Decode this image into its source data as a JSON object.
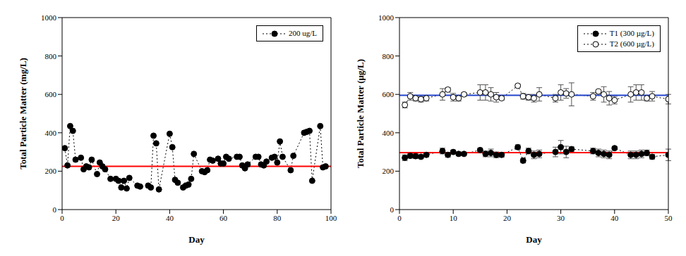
{
  "chart_data": [
    {
      "type": "line",
      "x_label": "Day",
      "y_label": "Total Particle Matter (mg/L)",
      "xlim": [
        0,
        100
      ],
      "xticks": [
        0,
        20,
        40,
        60,
        80,
        100
      ],
      "ylim": [
        0,
        1000
      ],
      "yticks": [
        0,
        200,
        400,
        600,
        800,
        1000
      ],
      "legend": "upper right",
      "reference_lines": [
        {
          "value": 225,
          "color": "#ff0000"
        }
      ],
      "series": [
        {
          "name": "200 ug/L",
          "color": "#000000",
          "marker": "filled_circle",
          "line_style": "dotted",
          "x": [
            1,
            2,
            3,
            4,
            5,
            7,
            8,
            9,
            10,
            11,
            13,
            14,
            15,
            16,
            18,
            20,
            21,
            22,
            23,
            24,
            25,
            28,
            29,
            32,
            33,
            34,
            35,
            36,
            40,
            41,
            42,
            43,
            45,
            46,
            47,
            48,
            49,
            52,
            53,
            54,
            55,
            56,
            58,
            59,
            60,
            61,
            62,
            65,
            66,
            67,
            68,
            69,
            72,
            73,
            74,
            75,
            76,
            78,
            79,
            80,
            81,
            82,
            85,
            86,
            90,
            91,
            92,
            93,
            96,
            97,
            98
          ],
          "values": [
            320,
            230,
            435,
            410,
            260,
            270,
            210,
            225,
            220,
            260,
            185,
            245,
            225,
            210,
            160,
            160,
            150,
            115,
            150,
            110,
            165,
            125,
            120,
            125,
            115,
            385,
            345,
            105,
            395,
            325,
            155,
            140,
            115,
            125,
            130,
            160,
            290,
            200,
            195,
            205,
            260,
            255,
            265,
            240,
            240,
            275,
            265,
            275,
            275,
            230,
            215,
            235,
            275,
            275,
            235,
            230,
            250,
            270,
            275,
            245,
            355,
            275,
            205,
            280,
            400,
            405,
            410,
            150,
            435,
            220,
            225
          ]
        }
      ]
    },
    {
      "type": "line",
      "x_label": "Day",
      "y_label": "Total Particle Matter (µg/L)",
      "xlim": [
        0,
        50
      ],
      "xticks": [
        0,
        10,
        20,
        30,
        40,
        50
      ],
      "ylim": [
        0,
        1000
      ],
      "yticks": [
        0,
        200,
        400,
        600,
        800,
        1000
      ],
      "legend": "upper right",
      "reference_lines": [
        {
          "value": 297,
          "color": "#ff0000"
        },
        {
          "value": 595,
          "color": "#2244cc"
        }
      ],
      "series": [
        {
          "name": "T1 (300 µg/L)",
          "color": "#000000",
          "marker": "filled_circle",
          "line_style": "dotted",
          "x": [
            1,
            2,
            3,
            4,
            5,
            8,
            9,
            10,
            11,
            12,
            15,
            16,
            17,
            18,
            19,
            22,
            23,
            24,
            25,
            26,
            29,
            30,
            31,
            32,
            36,
            37,
            38,
            39,
            40,
            43,
            44,
            45,
            46,
            47,
            50
          ],
          "values": [
            270,
            280,
            278,
            275,
            285,
            305,
            285,
            300,
            290,
            290,
            310,
            290,
            295,
            285,
            285,
            325,
            255,
            305,
            285,
            290,
            300,
            325,
            300,
            315,
            305,
            295,
            290,
            285,
            320,
            285,
            285,
            290,
            295,
            275,
            285
          ],
          "errors": [
            15,
            12,
            12,
            10,
            10,
            15,
            12,
            10,
            10,
            8,
            10,
            15,
            20,
            15,
            12,
            12,
            12,
            15,
            20,
            20,
            25,
            35,
            30,
            12,
            15,
            20,
            20,
            20,
            8,
            20,
            20,
            20,
            15,
            12,
            30
          ]
        },
        {
          "name": "T2 (600 µg/L)",
          "color": "#000000",
          "marker": "open_circle",
          "line_style": "dotted",
          "x": [
            1,
            2,
            3,
            4,
            5,
            8,
            9,
            10,
            11,
            12,
            15,
            16,
            17,
            18,
            19,
            22,
            23,
            24,
            25,
            26,
            29,
            30,
            31,
            32,
            36,
            37,
            38,
            39,
            40,
            43,
            44,
            45,
            46,
            47,
            50
          ],
          "values": [
            545,
            590,
            580,
            575,
            580,
            600,
            625,
            585,
            580,
            600,
            610,
            610,
            600,
            585,
            580,
            645,
            590,
            585,
            580,
            600,
            580,
            610,
            605,
            600,
            590,
            615,
            600,
            580,
            570,
            600,
            610,
            610,
            580,
            590,
            575
          ],
          "errors": [
            15,
            20,
            15,
            15,
            15,
            30,
            10,
            20,
            15,
            10,
            40,
            40,
            35,
            25,
            10,
            8,
            15,
            15,
            20,
            35,
            20,
            40,
            25,
            60,
            20,
            10,
            40,
            35,
            20,
            40,
            40,
            40,
            15,
            25,
            25
          ]
        }
      ]
    }
  ]
}
